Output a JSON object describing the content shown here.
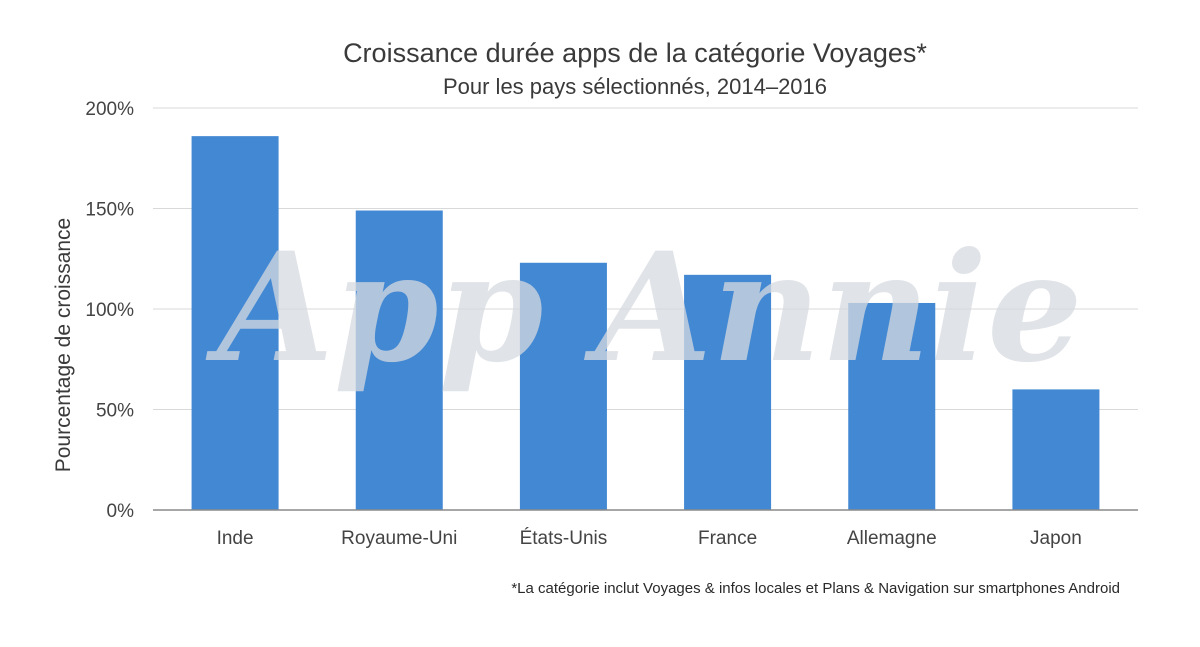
{
  "chart_data": {
    "type": "bar",
    "title": "Croissance durée apps de la catégorie Voyages*",
    "subtitle": "Pour les pays sélectionnés, 2014–2016",
    "ylabel": "Pourcentage de croissance",
    "xlabel": "",
    "categories": [
      "Inde",
      "Royaume-Uni",
      "États-Unis",
      "France",
      "Allemagne",
      "Japon"
    ],
    "values": [
      186,
      149,
      123,
      117,
      103,
      60
    ],
    "ylim": [
      0,
      200
    ],
    "yticks": [
      0,
      50,
      100,
      150,
      200
    ],
    "ytick_labels": [
      "0%",
      "50%",
      "100%",
      "150%",
      "200%"
    ],
    "grid": true,
    "bar_color": "#4288d3",
    "footnote": "*La catégorie inclut Voyages & infos locales et Plans & Navigation sur smartphones Android",
    "watermark": "App Annie"
  }
}
